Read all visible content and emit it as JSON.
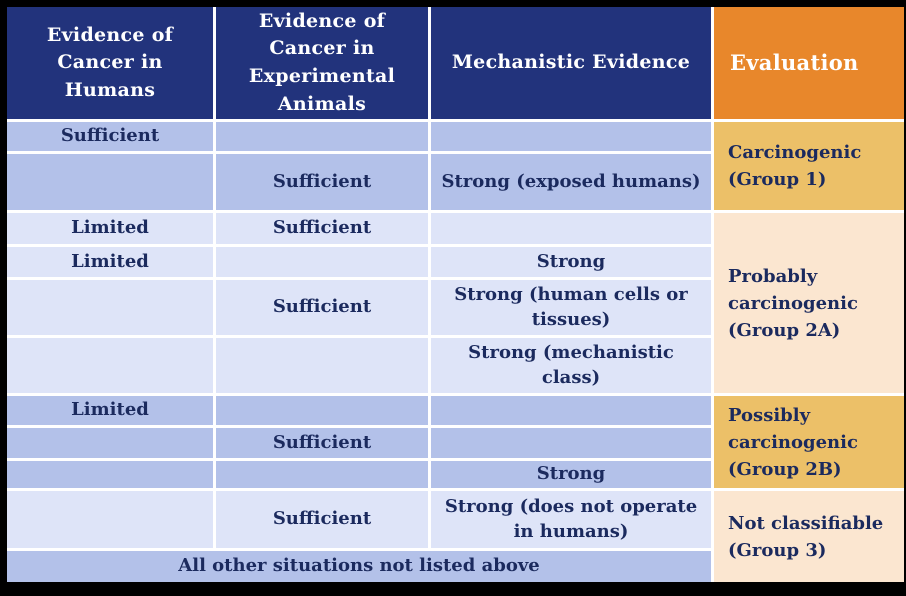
{
  "colors": {
    "header_navy": "#22337C",
    "header_orange": "#E8872B",
    "header_text": "#FFFFFF",
    "row_medium": "#B3C1E9",
    "row_light": "#DEE4F8",
    "eval_gold": "#ECC068",
    "eval_peach": "#FBE6D0",
    "text_navy": "#1B2A5E",
    "grid_line": "#FFFFFF"
  },
  "table": {
    "headers": {
      "humans": "Evidence of Cancer in Humans",
      "animals": "Evidence of Cancer in Experimental Animals",
      "mechanistic": "Mechanistic Evidence",
      "evaluation": "Evaluation"
    },
    "rows": [
      {
        "humans": "Sufficient",
        "animals": "",
        "mechanistic": ""
      },
      {
        "humans": "",
        "animals": "Sufficient",
        "mechanistic": "Strong (exposed humans)"
      },
      {
        "humans": "Limited",
        "animals": "Sufficient",
        "mechanistic": ""
      },
      {
        "humans": "Limited",
        "animals": "",
        "mechanistic": "Strong"
      },
      {
        "humans": "",
        "animals": "Sufficient",
        "mechanistic": "Strong (human cells or tissues)"
      },
      {
        "humans": "",
        "animals": "",
        "mechanistic": "Strong (mechanistic class)"
      },
      {
        "humans": "Limited",
        "animals": "",
        "mechanistic": ""
      },
      {
        "humans": "",
        "animals": "Sufficient",
        "mechanistic": ""
      },
      {
        "humans": "",
        "animals": "",
        "mechanistic": "Strong"
      },
      {
        "humans": "",
        "animals": "Sufficient",
        "mechanistic": "Strong (does not operate in humans)"
      }
    ],
    "footer": "All other situations not listed above",
    "evaluations": [
      {
        "label": "Carcinogenic (Group 1)"
      },
      {
        "label": "Probably carcinogenic (Group 2A)"
      },
      {
        "label": "Possibly carcinogenic (Group 2B)"
      },
      {
        "label": "Not classifiable (Group 3)"
      }
    ]
  }
}
